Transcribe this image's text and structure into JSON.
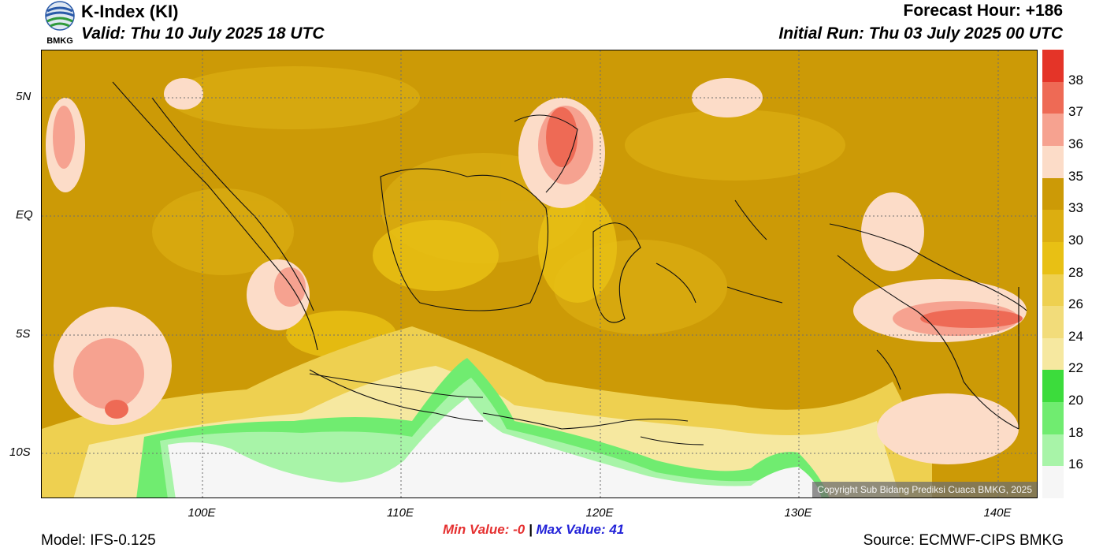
{
  "header": {
    "title": "K-Index (KI)",
    "valid": "Valid: Thu 10 July 2025 18 UTC",
    "forecast_hour": "Forecast Hour: +186",
    "initial_run": "Initial Run: Thu 03 July 2025 00 UTC",
    "logo_text": "BMKG"
  },
  "map": {
    "lat_labels": [
      "5N",
      "EQ",
      "5S",
      "10S"
    ],
    "lon_labels": [
      "100E",
      "110E",
      "120E",
      "130E",
      "140E"
    ],
    "copyright": "Copyright Sub Bidang Prediksi Cuaca BMKG, 2025"
  },
  "colorbar": {
    "labels": [
      "38",
      "37",
      "36",
      "35",
      "33",
      "30",
      "28",
      "26",
      "24",
      "22",
      "20",
      "18",
      "16"
    ],
    "colors": [
      "#e43428",
      "#ee6a55",
      "#f6a290",
      "#fcdcc8",
      "#cc9a06",
      "#dcae10",
      "#e8c014",
      "#eed050",
      "#f2dc7a",
      "#f6e8a0",
      "#3cdc3c",
      "#70ec70",
      "#a8f4a8",
      "#f6f6f6"
    ]
  },
  "footer": {
    "min_label": "Min Value:  -0",
    "separator": "|",
    "max_label": "Max Value:  41",
    "model": "Model: IFS-0.125",
    "source": "Source: ECMWF-CIPS BMKG"
  }
}
